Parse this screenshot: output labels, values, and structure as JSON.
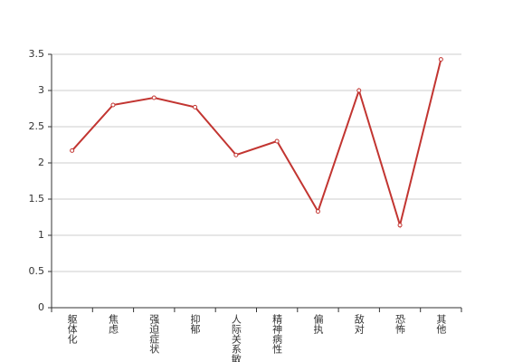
{
  "chart_data": {
    "type": "line",
    "categories": [
      "躯体化",
      "焦虑",
      "强迫症状",
      "抑郁",
      "人际关系敏感",
      "精神病性",
      "偏执",
      "敌对",
      "恐怖",
      "其他"
    ],
    "values": [
      2.17,
      2.8,
      2.9,
      2.77,
      2.11,
      2.3,
      1.33,
      3.0,
      1.14,
      3.43
    ],
    "color": "#c23531",
    "ylim": [
      0,
      3.5
    ],
    "yticks": [
      0,
      0.5,
      1,
      1.5,
      2,
      2.5,
      3,
      3.5
    ],
    "grid": true
  }
}
